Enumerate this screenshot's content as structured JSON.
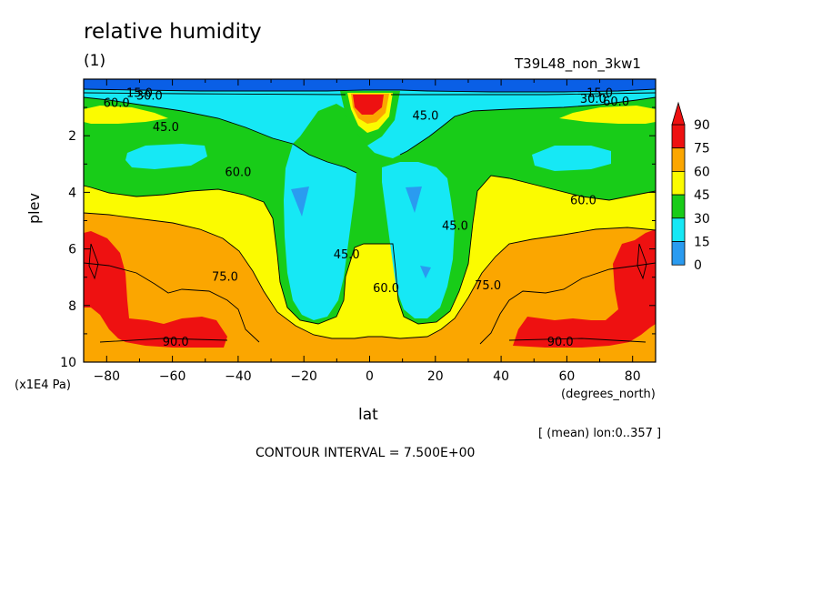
{
  "title": "relative humidity",
  "subtitle": "(1)",
  "run_name": "T39L48_non_3kw1",
  "ylabel": "plev",
  "yunit": "(x1E4 Pa)",
  "xlabel": "lat",
  "xunit": "(degrees_north)",
  "mean_note": "[ (mean) lon:0..357 ]",
  "contour_interval": "CONTOUR INTERVAL = 7.500E+00",
  "colors": {
    "0": "#0a5fe6",
    "15": "#2a9bf0",
    "30": "#16e8f5",
    "45": "#18cc18",
    "60": "#fbfb00",
    "75": "#fba600",
    "90": "#ee1111"
  },
  "chart_data": {
    "type": "heatmap",
    "title": "relative humidity",
    "xlabel": "lat",
    "ylabel": "plev",
    "xlim": [
      -87,
      87
    ],
    "ylim": [
      10,
      0
    ],
    "x_ticks": [
      "-80",
      "-60",
      "-40",
      "-20",
      "0",
      "20",
      "40",
      "60",
      "80"
    ],
    "y_ticks": [
      "2",
      "4",
      "6",
      "8",
      "10"
    ],
    "colorbar_levels": [
      "0",
      "15",
      "30",
      "45",
      "60",
      "75",
      "90"
    ],
    "contour_labels": [
      {
        "text": "15.0",
        "lat": -70,
        "p": 0.5
      },
      {
        "text": "30.0",
        "lat": -67,
        "p": 0.6
      },
      {
        "text": "60.0",
        "lat": -77,
        "p": 0.85
      },
      {
        "text": "45.0",
        "lat": -62,
        "p": 1.7
      },
      {
        "text": "45.0",
        "lat": 17,
        "p": 1.3
      },
      {
        "text": "15.0",
        "lat": 70,
        "p": 0.5
      },
      {
        "text": "30.0",
        "lat": 68,
        "p": 0.7
      },
      {
        "text": "60.0",
        "lat": 75,
        "p": 0.8
      },
      {
        "text": "60.0",
        "lat": -40,
        "p": 3.3
      },
      {
        "text": "60.0",
        "lat": 65,
        "p": 4.3
      },
      {
        "text": "45.0",
        "lat": 26,
        "p": 5.2
      },
      {
        "text": "45.0",
        "lat": -7,
        "p": 6.2
      },
      {
        "text": "60.0",
        "lat": 5,
        "p": 7.4
      },
      {
        "text": "75.0",
        "lat": -44,
        "p": 7.0
      },
      {
        "text": "75.0",
        "lat": 36,
        "p": 7.3
      },
      {
        "text": "90.0",
        "lat": -59,
        "p": 9.3
      },
      {
        "text": "90.0",
        "lat": 58,
        "p": 9.3
      }
    ]
  }
}
